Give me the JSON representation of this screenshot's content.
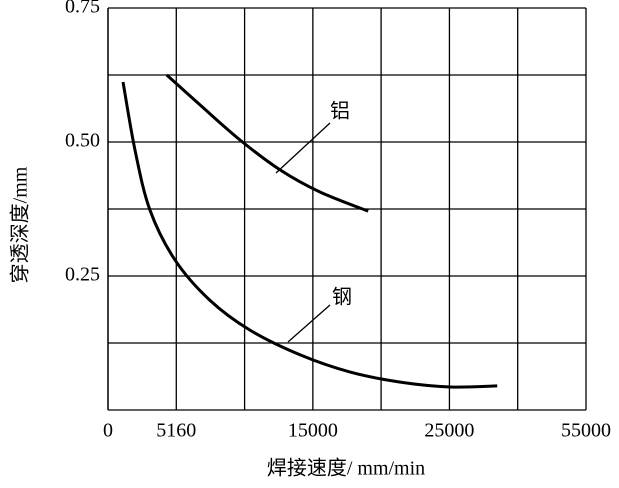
{
  "chart_data": {
    "type": "line",
    "x_label": "焊接速度/ mm/min",
    "y_label": "穿透深度/mm",
    "xlim": [
      0,
      55000
    ],
    "xticks": [
      0,
      5160,
      15000,
      25000,
      55000
    ],
    "ylim": [
      0,
      0.75
    ],
    "yticks": [
      {
        "value": 0.25,
        "label": "0.25"
      },
      {
        "value": 0.5,
        "label": "0.50"
      },
      {
        "value": 0.75,
        "label": "0.75"
      }
    ],
    "grid": true,
    "series": [
      {
        "name": "铝",
        "color": "#000000",
        "x": [
          4440,
          6880,
          9740,
          12640,
          15500,
          19050
        ],
        "values": [
          0.625,
          0.569,
          0.504,
          0.448,
          0.407,
          0.371
        ]
      },
      {
        "name": "钢",
        "color": "#000000",
        "x": [
          1135,
          2040,
          3170,
          5060,
          7570,
          10470,
          14070,
          17700,
          21400,
          25150,
          35500
        ],
        "values": [
          0.612,
          0.485,
          0.373,
          0.28,
          0.205,
          0.149,
          0.103,
          0.071,
          0.052,
          0.043,
          0.045
        ]
      }
    ]
  }
}
